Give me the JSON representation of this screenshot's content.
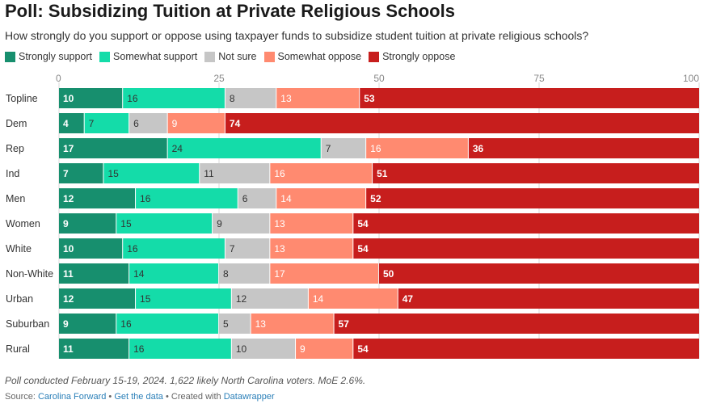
{
  "header": {
    "title": "Poll: Subsidizing Tuition at Private Religious Schools",
    "subtitle": "How strongly do you support or oppose using taxpayer funds to subsidize student tuition at private religious schools?"
  },
  "colors": {
    "strongly_support": "#178f6e",
    "somewhat_support": "#14dca9",
    "not_sure": "#c6c6c6",
    "somewhat_oppose": "#ff8a70",
    "strongly_oppose": "#c71e1d"
  },
  "chart_data": {
    "type": "bar",
    "orientation": "horizontal",
    "stacked": true,
    "xlim": [
      0,
      100
    ],
    "xticks": [
      0,
      25,
      50,
      75,
      100
    ],
    "grid": true,
    "legend_position": "top",
    "categories": [
      "Topline",
      "Dem",
      "Rep",
      "Ind",
      "Men",
      "Women",
      "White",
      "Non-White",
      "Urban",
      "Suburban",
      "Rural"
    ],
    "series": [
      {
        "name": "Strongly support",
        "values": [
          10,
          4,
          17,
          7,
          12,
          9,
          10,
          11,
          12,
          9,
          11
        ]
      },
      {
        "name": "Somewhat support",
        "values": [
          16,
          7,
          24,
          15,
          16,
          15,
          16,
          14,
          15,
          16,
          16
        ]
      },
      {
        "name": "Not sure",
        "values": [
          8,
          6,
          7,
          11,
          6,
          9,
          7,
          8,
          12,
          5,
          10
        ]
      },
      {
        "name": "Somewhat oppose",
        "values": [
          13,
          9,
          16,
          16,
          14,
          13,
          13,
          17,
          14,
          13,
          9
        ]
      },
      {
        "name": "Strongly oppose",
        "values": [
          53,
          74,
          36,
          51,
          52,
          54,
          54,
          50,
          47,
          57,
          54
        ]
      }
    ]
  },
  "footer": {
    "note": "Poll conducted February 15-19, 2024. 1,622 likely North Carolina voters. MoE 2.6%.",
    "source_label": "Source:",
    "source_name": "Carolina Forward",
    "separator": "•",
    "get_data": "Get the data",
    "created_with": "Created with",
    "tool": "Datawrapper"
  }
}
